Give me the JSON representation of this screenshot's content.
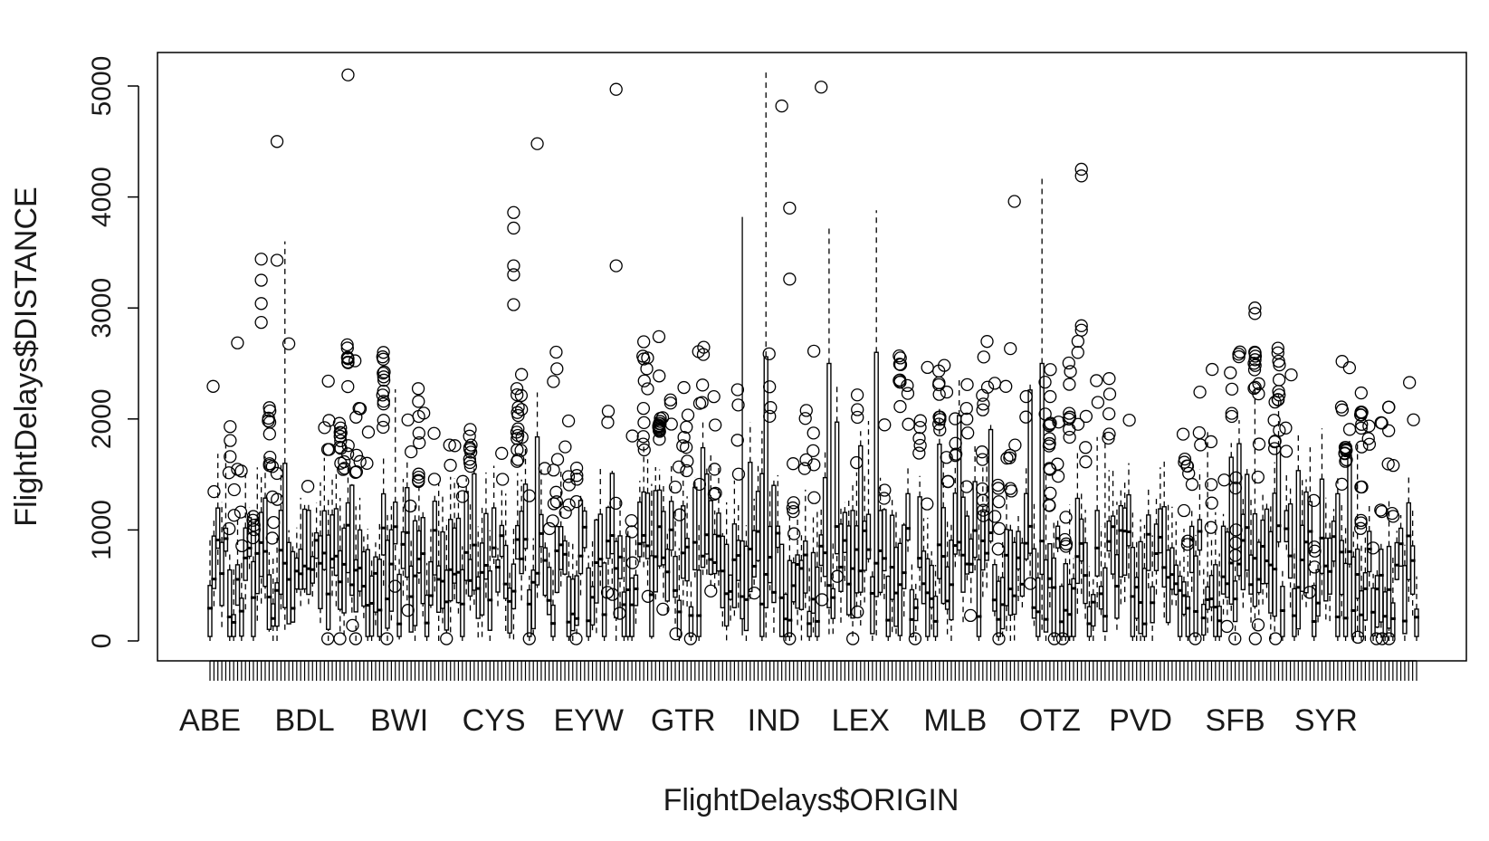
{
  "chart_data": {
    "type": "boxplot",
    "title": "",
    "xlabel": "FlightDelays$ORIGIN",
    "ylabel": "FlightDelays$DISTANCE",
    "ylim": [
      -190,
      5300
    ],
    "y_ticks": [
      0,
      1000,
      2000,
      3000,
      4000,
      5000
    ],
    "x_tick_labels": [
      "ABE",
      "BDL",
      "BWI",
      "CYS",
      "EYW",
      "GTR",
      "IND",
      "LEX",
      "MLB",
      "OTZ",
      "PVD",
      "SFB",
      "SYR"
    ],
    "n_categories": 307,
    "x_tick_label_positions": [
      1,
      25,
      49,
      73,
      97,
      121,
      144,
      166,
      190,
      214,
      237,
      261,
      284
    ],
    "grid": false,
    "legend": "none",
    "colors": {
      "box": "#000000",
      "axis": "#000000",
      "text": "#1a1a1a",
      "background": "#ffffff"
    },
    "highlighted_outliers": [
      {
        "x": 36,
        "y": 5100
      },
      {
        "x": 104,
        "y": 4970
      },
      {
        "x": 156,
        "y": 4990
      },
      {
        "x": 146,
        "y": 4820
      },
      {
        "x": 18,
        "y": 4500
      },
      {
        "x": 84,
        "y": 4480
      },
      {
        "x": 205,
        "y": 3960
      },
      {
        "x": 148,
        "y": 3900
      },
      {
        "x": 222,
        "y": 4250
      },
      {
        "x": 222,
        "y": 4190
      },
      {
        "x": 104,
        "y": 3380
      },
      {
        "x": 148,
        "y": 3260
      },
      {
        "x": 18,
        "y": 3430
      },
      {
        "x": 14,
        "y": 3440
      },
      {
        "x": 14,
        "y": 3250
      },
      {
        "x": 14,
        "y": 3040
      },
      {
        "x": 14,
        "y": 2870
      },
      {
        "x": 78,
        "y": 3860
      },
      {
        "x": 78,
        "y": 3720
      },
      {
        "x": 78,
        "y": 3380
      },
      {
        "x": 78,
        "y": 3300
      },
      {
        "x": 78,
        "y": 3030
      },
      {
        "x": 266,
        "y": 3000
      },
      {
        "x": 266,
        "y": 2950
      },
      {
        "x": 222,
        "y": 2840
      },
      {
        "x": 222,
        "y": 2800
      }
    ],
    "long_whiskers": [
      {
        "x": 142,
        "low": 30,
        "q1": 300,
        "median": 600,
        "q3": 2560,
        "high": 5130
      },
      {
        "x": 136,
        "low": 50,
        "q1": 200,
        "median": 400,
        "q3": 900,
        "high": 3820,
        "style": "solid"
      },
      {
        "x": 212,
        "low": 100,
        "q1": 600,
        "median": 900,
        "q3": 2500,
        "high": 4200
      },
      {
        "x": 170,
        "low": 50,
        "q1": 400,
        "median": 700,
        "q3": 2600,
        "high": 3880
      },
      {
        "x": 158,
        "low": 60,
        "q1": 300,
        "median": 500,
        "q3": 2500,
        "high": 3740
      },
      {
        "x": 20,
        "low": 100,
        "q1": 300,
        "median": 700,
        "q3": 1600,
        "high": 3600
      }
    ]
  }
}
